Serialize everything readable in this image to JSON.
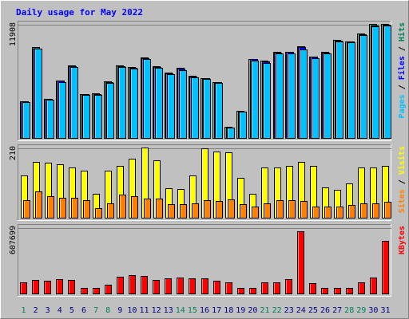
{
  "chart_data": {
    "type": "bar",
    "title": "Daily usage for May 2022",
    "x": [
      "1",
      "2",
      "3",
      "4",
      "5",
      "6",
      "7",
      "8",
      "9",
      "10",
      "11",
      "12",
      "13",
      "14",
      "15",
      "16",
      "17",
      "18",
      "19",
      "20",
      "21",
      "22",
      "23",
      "24",
      "25",
      "26",
      "27",
      "28",
      "29",
      "30",
      "31"
    ],
    "weekend_days": [
      "1",
      "7",
      "8",
      "14",
      "15",
      "21",
      "22",
      "28",
      "29"
    ],
    "panels": [
      {
        "name": "upper",
        "ymax_label": "11908",
        "ylim": [
          0,
          11908
        ],
        "right_labels": [
          {
            "text": "Pages",
            "color": "#00c0ff"
          },
          {
            "text": " / ",
            "color": "#000000"
          },
          {
            "text": "Files",
            "color": "#0000ff"
          },
          {
            "text": " / ",
            "color": "#000000"
          },
          {
            "text": "Hits",
            "color": "#00805c"
          }
        ],
        "series": [
          {
            "name": "Hits",
            "color": "#00805c",
            "values": [
              3950,
              9550,
              4200,
              6100,
              7700,
              4700,
              4750,
              6000,
              7700,
              7500,
              8500,
              7600,
              6950,
              7400,
              6550,
              6350,
              5950,
              1250,
              2900,
              8350,
              8150,
              9100,
              9100,
              9700,
              8600,
              9050,
              10300,
              10200,
              11000,
              12000,
              12000
            ]
          },
          {
            "name": "Files",
            "color": "#0000ff",
            "values": [
              3900,
              9450,
              4150,
              6050,
              7600,
              4650,
              4700,
              5950,
              7600,
              7400,
              8450,
              7500,
              6850,
              7300,
              6500,
              6300,
              5900,
              1200,
              2850,
              8300,
              8100,
              9000,
              9050,
              9600,
              8550,
              9000,
              10250,
              10150,
              10900,
              11800,
              11908
            ]
          },
          {
            "name": "Pages",
            "color": "#00c0ff",
            "values": [
              3800,
              9400,
              4050,
              5950,
              7500,
              4550,
              4600,
              5850,
              7500,
              7300,
              8350,
              7400,
              6750,
              7200,
              6400,
              6250,
              5800,
              1150,
              2800,
              8150,
              7950,
              8950,
              8950,
              9300,
              8450,
              8900,
              10150,
              10050,
              10800,
              11700,
              11800
            ]
          }
        ]
      },
      {
        "name": "middle",
        "ymax_label": "210",
        "ylim": [
          0,
          210
        ],
        "right_labels": [
          {
            "text": "Sites",
            "color": "#ff8000"
          },
          {
            "text": " / ",
            "color": "#000000"
          },
          {
            "text": "Visits",
            "color": "#ffff00"
          }
        ],
        "series": [
          {
            "name": "Visits",
            "color": "#ffff00",
            "values": [
              130,
              170,
              168,
              162,
              152,
              142,
              75,
              143,
              157,
              178,
              212,
              175,
              90,
              88,
              130,
              210,
              200,
              197,
              122,
              75,
              152,
              152,
              157,
              170,
              157,
              92,
              85,
              105,
              152,
              152,
              157
            ]
          },
          {
            "name": "Sites",
            "color": "#ff8000",
            "values": [
              55,
              82,
              68,
              63,
              63,
              55,
              30,
              45,
              72,
              67,
              60,
              60,
              42,
              42,
              45,
              55,
              52,
              58,
              42,
              35,
              45,
              55,
              55,
              52,
              35,
              35,
              35,
              40,
              45,
              45,
              50
            ]
          }
        ]
      },
      {
        "name": "lower",
        "ymax_label": "607699",
        "ylim": [
          0,
          607699
        ],
        "right_labels": [
          {
            "text": "KBytes",
            "color": "#ff0000"
          }
        ],
        "series": [
          {
            "name": "KBytes",
            "color": "#ff0000",
            "values": [
              112000,
              130000,
              125000,
              142000,
              135000,
              60000,
              60000,
              85000,
              160000,
              178000,
              168000,
              130000,
              145000,
              155000,
              148000,
              148000,
              123000,
              110000,
              60000,
              60000,
              108000,
              108000,
              140000,
              576000,
              106000,
              58000,
              58000,
              58000,
              108000,
              155000,
              490000
            ]
          }
        ]
      }
    ]
  }
}
